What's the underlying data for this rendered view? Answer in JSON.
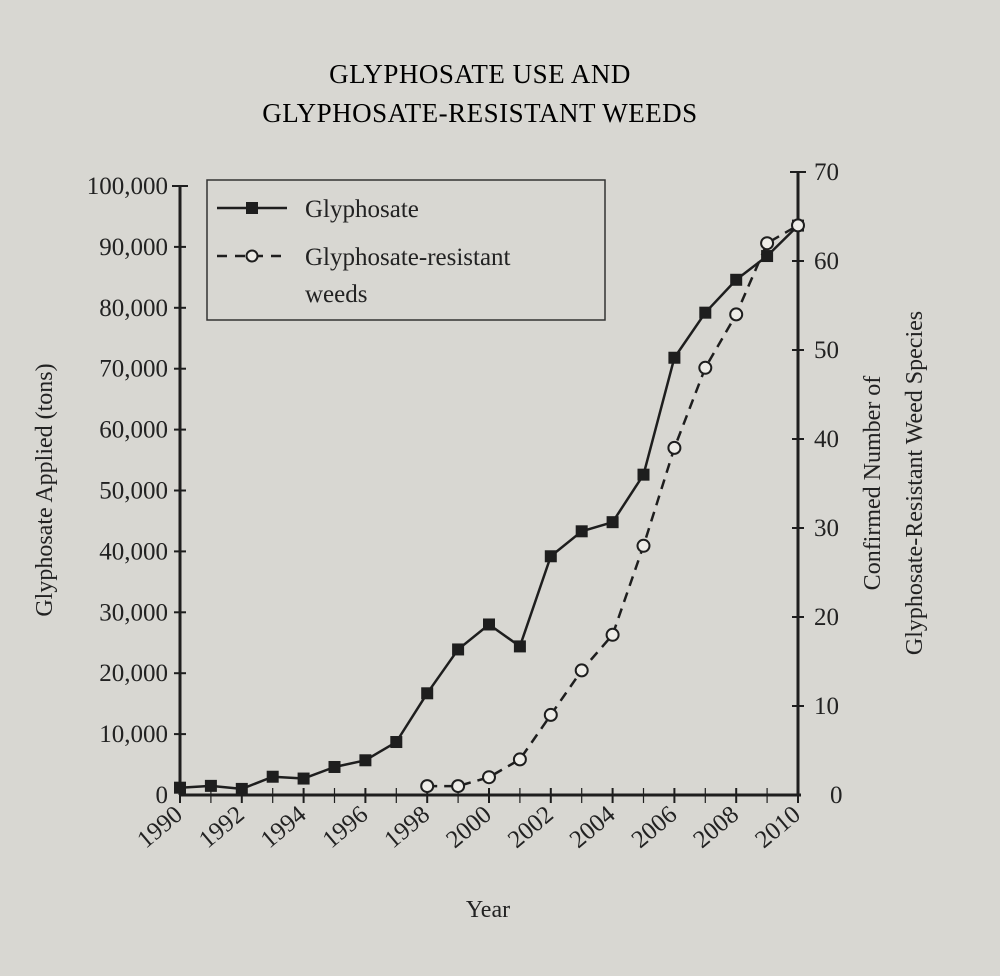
{
  "chart_data": {
    "type": "line",
    "title": [
      "GLYPHOSATE USE AND",
      "GLYPHOSATE-RESISTANT WEEDS"
    ],
    "xlabel": "Year",
    "ylabel_left": "Glyphosate Applied (tons)",
    "ylabel_right": [
      "Confirmed Number of",
      "Glyphosate-Resistant Weed Species"
    ],
    "x_ticks": [
      "1990",
      "1992",
      "1994",
      "1996",
      "1998",
      "2000",
      "2002",
      "2004",
      "2006",
      "2008",
      "2010"
    ],
    "xlim": [
      1990,
      2010
    ],
    "y_left_ticks": [
      "0",
      "10,000",
      "20,000",
      "30,000",
      "40,000",
      "50,000",
      "60,000",
      "70,000",
      "80,000",
      "90,000",
      "100,000"
    ],
    "ylim_left": [
      0,
      100000
    ],
    "y_right_ticks": [
      "0",
      "10",
      "20",
      "30",
      "40",
      "50",
      "60",
      "70"
    ],
    "ylim_right": [
      0,
      70
    ],
    "grid": false,
    "legend": {
      "position": "top-left",
      "entries": [
        {
          "label": "Glyphosate",
          "style": "solid-filled-square"
        },
        {
          "label_line1": "Glyphosate-resistant",
          "label_line2": "weeds",
          "style": "dashed-open-circle"
        }
      ]
    },
    "series": [
      {
        "name": "Glyphosate",
        "axis": "left",
        "x": [
          1990,
          1991,
          1992,
          1993,
          1994,
          1995,
          1996,
          1997,
          1998,
          1999,
          2000,
          2001,
          2002,
          2003,
          2004,
          2005,
          2006,
          2007,
          2008,
          2009,
          2010
        ],
        "values": [
          1200,
          1500,
          1000,
          3000,
          2700,
          4600,
          5700,
          8700,
          16700,
          23900,
          28000,
          24400,
          39200,
          43300,
          44800,
          52600,
          71800,
          79200,
          84600,
          88500,
          93500
        ]
      },
      {
        "name": "Glyphosate-resistant weeds",
        "axis": "right",
        "x": [
          1998,
          1999,
          2000,
          2001,
          2002,
          2003,
          2004,
          2005,
          2006,
          2007,
          2008,
          2009,
          2010
        ],
        "values": [
          1,
          1,
          2,
          4,
          9,
          14,
          18,
          28,
          39,
          48,
          54,
          62,
          64
        ]
      }
    ],
    "colors": {
      "ink": "#1e1e1e",
      "paper": "#d8d7d2",
      "marker_fill_open": "#eeede8"
    }
  }
}
